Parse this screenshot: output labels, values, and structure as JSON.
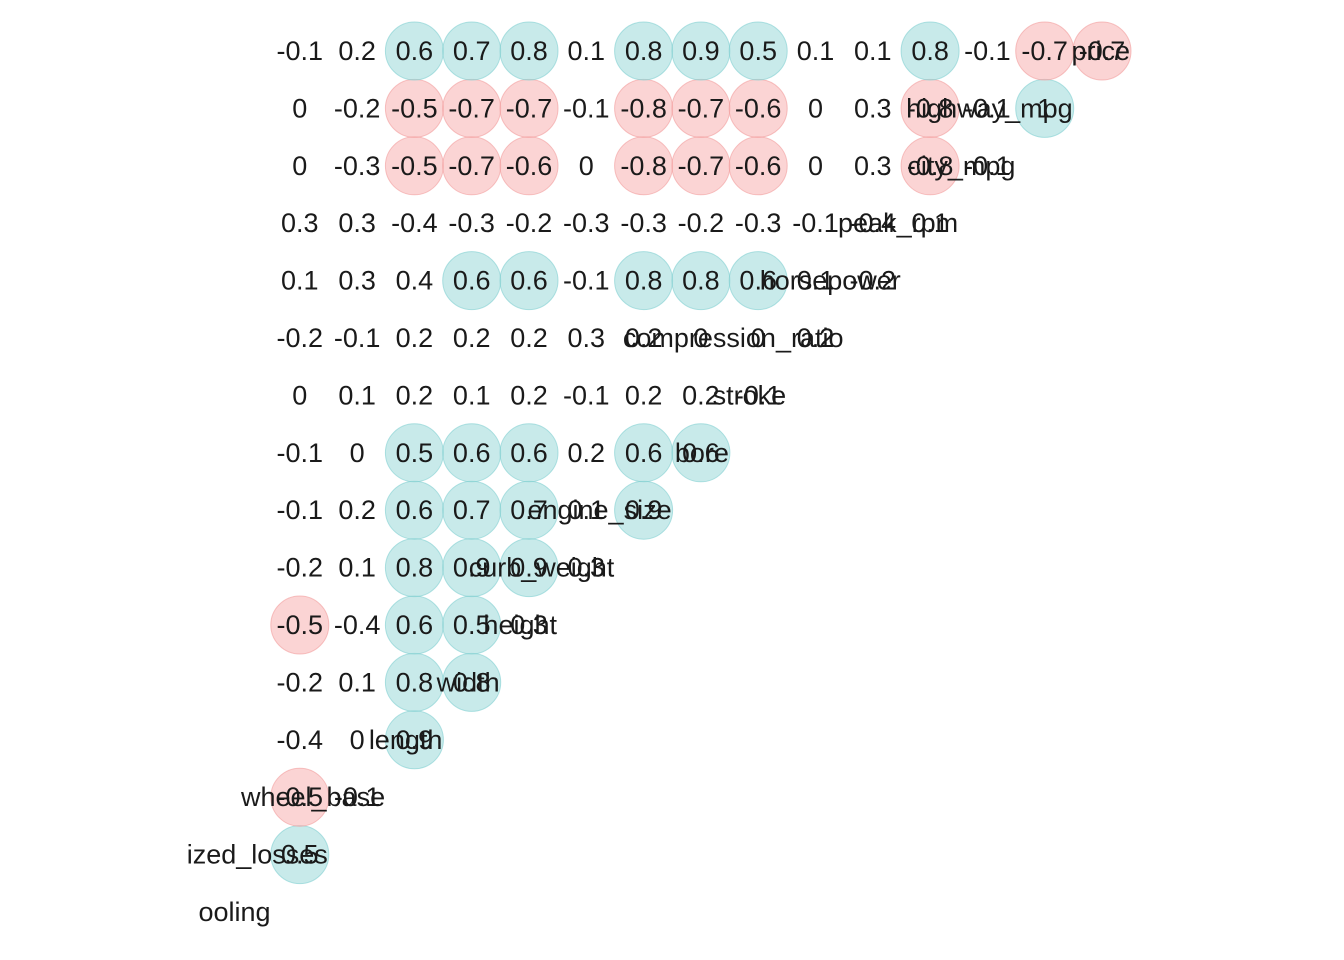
{
  "chart_data": {
    "type": "heatmap",
    "style": "lower-triangle correlation matrix with circles marking strong correlations",
    "variables": [
      "aspiration_turbo_cooling",
      "normalized_losses",
      "wheel_base",
      "length",
      "width",
      "height",
      "curb_weight",
      "engine_size",
      "bore",
      "stroke",
      "compression_ratio",
      "horsepower",
      "peak_rpm",
      "city_mpg",
      "highway_mpg",
      "price"
    ],
    "row_labels": [
      "ooling",
      "ized_losses",
      "wheel_base",
      "length",
      "width",
      "height",
      "curb_weight",
      "engine_size",
      "bore",
      "stroke",
      "compression_ratio",
      "horsepower",
      "peak_rpm",
      "city_mpg",
      "highway_mpg",
      "price"
    ],
    "matrix": [
      [],
      [
        "0.5"
      ],
      [
        "-0.5",
        "-0.1"
      ],
      [
        "-0.4",
        "0",
        "0.9"
      ],
      [
        "-0.2",
        "0.1",
        "0.8",
        "0.8"
      ],
      [
        "-0.5",
        "-0.4",
        "0.6",
        "0.5",
        "0.3"
      ],
      [
        "-0.2",
        "0.1",
        "0.8",
        "0.9",
        "0.9",
        "0.3"
      ],
      [
        "-0.1",
        "0.2",
        "0.6",
        "0.7",
        "0.7",
        "0.1",
        "0.9"
      ],
      [
        "-0.1",
        "0",
        "0.5",
        "0.6",
        "0.6",
        "0.2",
        "0.6",
        "0.6"
      ],
      [
        "0",
        "0.1",
        "0.2",
        "0.1",
        "0.2",
        "-0.1",
        "0.2",
        "0.2",
        "-0.1"
      ],
      [
        "-0.2",
        "-0.1",
        "0.2",
        "0.2",
        "0.2",
        "0.3",
        "0.2",
        "0",
        "0",
        "0.2"
      ],
      [
        "0.1",
        "0.3",
        "0.4",
        "0.6",
        "0.6",
        "-0.1",
        "0.8",
        "0.8",
        "0.6",
        "0.1",
        "-0.2"
      ],
      [
        "0.3",
        "0.3",
        "-0.4",
        "-0.3",
        "-0.2",
        "-0.3",
        "-0.3",
        "-0.2",
        "-0.3",
        "-0.1",
        "-0.4",
        "0.1"
      ],
      [
        "0",
        "-0.3",
        "-0.5",
        "-0.7",
        "-0.6",
        "0",
        "-0.8",
        "-0.7",
        "-0.6",
        "0",
        "0.3",
        "-0.8",
        "-0.1"
      ],
      [
        "0",
        "-0.2",
        "-0.5",
        "-0.7",
        "-0.7",
        "-0.1",
        "-0.8",
        "-0.7",
        "-0.6",
        "0",
        "0.3",
        "-0.8",
        "-0.1",
        "1"
      ],
      [
        "-0.1",
        "0.2",
        "0.6",
        "0.7",
        "0.8",
        "0.1",
        "0.8",
        "0.9",
        "0.5",
        "0.1",
        "0.1",
        "0.8",
        "-0.1",
        "-0.7",
        "-0.7"
      ]
    ],
    "circle_threshold": 0.5,
    "colors": {
      "positive": "#9ad9d9",
      "negative": "#f7b0b0",
      "positive_stroke": "#7fcfd0",
      "negative_stroke": "#f29b9b",
      "text": "#1a1a1a"
    }
  }
}
